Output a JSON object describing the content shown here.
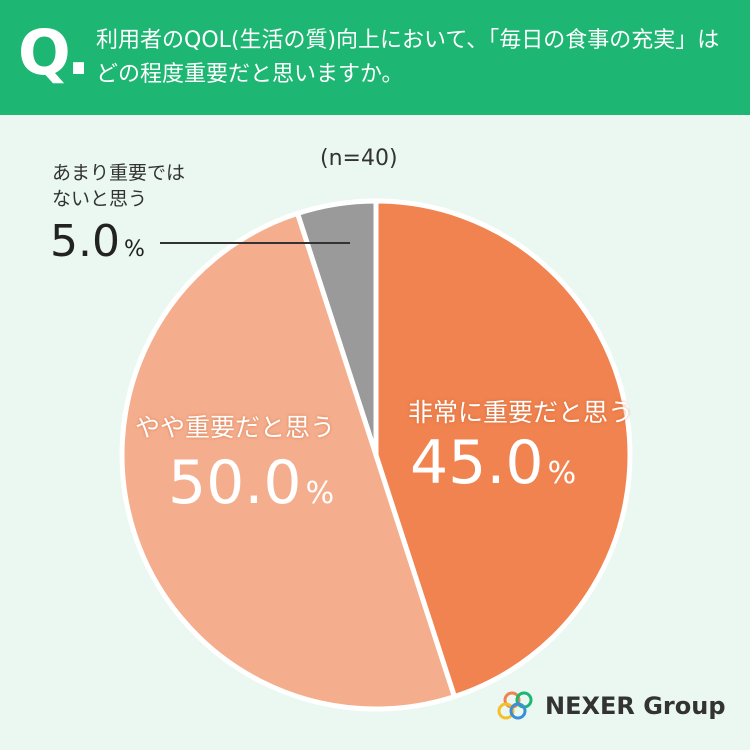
{
  "header": {
    "badge": "Q."
  },
  "chart_data": {
    "type": "pie",
    "title": "利用者のQOL(生活の質)向上において、「毎日の食事の充実」はどの程度重要だと思いますか。",
    "subtitle": "(n=40)",
    "categories": [
      "非常に重要だと思う",
      "やや重要だと思う",
      "あまり重要ではないと思う"
    ],
    "values": [
      45,
      50,
      5
    ],
    "value_labels": [
      "45.0%",
      "50.0%",
      "5.0%"
    ],
    "colors": [
      "#f0834f",
      "#f5ae8d",
      "#9a9a9a"
    ]
  },
  "logo": "NEXER Group"
}
